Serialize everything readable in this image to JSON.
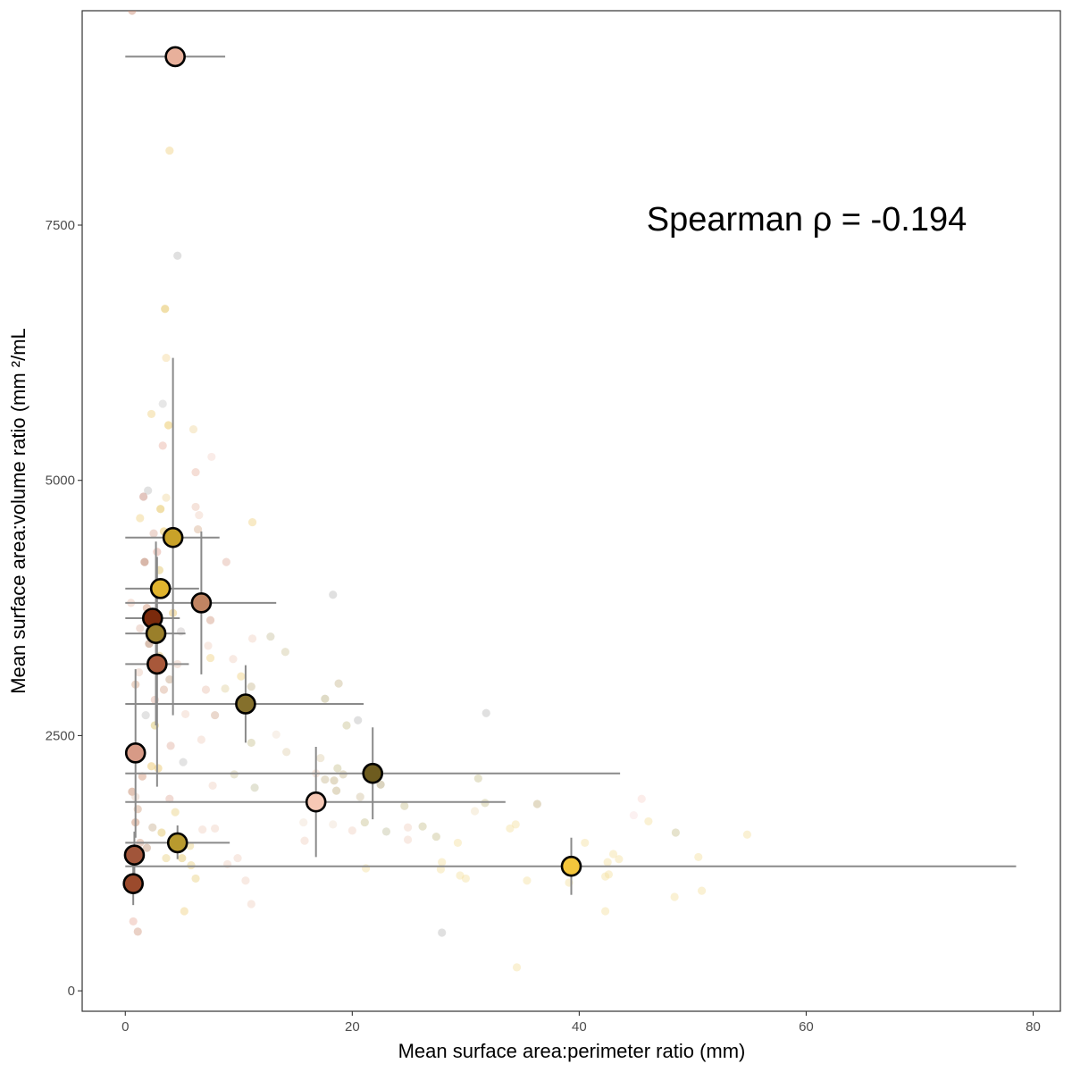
{
  "chart_data": {
    "type": "scatter",
    "xlabel": "Mean surface area:perimeter ratio (mm)",
    "ylabel": "Mean surface area:volume ratio (mm ²/mL",
    "annotation": "Spearman ρ = -0.194",
    "xlim": [
      -3.8,
      82.4
    ],
    "ylim": [
      -200,
      9600
    ],
    "x_ticks": [
      0,
      20,
      40,
      60,
      80
    ],
    "y_ticks": [
      0,
      2500,
      5000,
      7500
    ],
    "grid": false,
    "legend": "none",
    "group_means": [
      {
        "x": 4.4,
        "y": 9150,
        "x_lo": 0.0,
        "x_hi": 8.8,
        "y_lo": null,
        "y_hi": null,
        "color": "#E8B09B"
      },
      {
        "x": 4.2,
        "y": 4440,
        "x_lo": 0.0,
        "x_hi": 8.3,
        "y_lo": 2700,
        "y_hi": 6200,
        "color": "#C9A229"
      },
      {
        "x": 3.1,
        "y": 3940,
        "x_lo": 0.0,
        "x_hi": 6.5,
        "y_lo": null,
        "y_hi": null,
        "color": "#E0B42E"
      },
      {
        "x": 6.7,
        "y": 3800,
        "x_lo": 0.0,
        "x_hi": 13.3,
        "y_lo": 3100,
        "y_hi": 4500,
        "color": "#C08462"
      },
      {
        "x": 2.4,
        "y": 3650,
        "x_lo": 0.0,
        "x_hi": 4.8,
        "y_lo": null,
        "y_hi": null,
        "color": "#7A2A0C"
      },
      {
        "x": 2.7,
        "y": 3500,
        "x_lo": 0.0,
        "x_hi": 5.3,
        "y_lo": 2600,
        "y_hi": 4400,
        "color": "#9A7F2A"
      },
      {
        "x": 2.8,
        "y": 3200,
        "x_lo": 0.0,
        "x_hi": 5.6,
        "y_lo": 2000,
        "y_hi": 4250,
        "color": "#A8583A"
      },
      {
        "x": 10.6,
        "y": 2810,
        "x_lo": 0.0,
        "x_hi": 21.0,
        "y_lo": 2430,
        "y_hi": 3190,
        "color": "#85702C"
      },
      {
        "x": 0.9,
        "y": 2330,
        "x_lo": 0.0,
        "x_hi": 1.8,
        "y_lo": 1500,
        "y_hi": 3150,
        "color": "#D79A86"
      },
      {
        "x": 21.8,
        "y": 2130,
        "x_lo": 0.0,
        "x_hi": 43.6,
        "y_lo": 1680,
        "y_hi": 2580,
        "color": "#6E5C1F"
      },
      {
        "x": 16.8,
        "y": 1850,
        "x_lo": 0.0,
        "x_hi": 33.5,
        "y_lo": 1310,
        "y_hi": 2390,
        "color": "#F6C8B5"
      },
      {
        "x": 4.6,
        "y": 1450,
        "x_lo": 0.0,
        "x_hi": 9.2,
        "y_lo": 1290,
        "y_hi": 1620,
        "color": "#B89A2E"
      },
      {
        "x": 0.8,
        "y": 1330,
        "x_lo": null,
        "x_hi": null,
        "y_lo": 1100,
        "y_hi": 1560,
        "color": "#A1553A"
      },
      {
        "x": 39.3,
        "y": 1220,
        "x_lo": 0.0,
        "x_hi": 78.5,
        "y_lo": 940,
        "y_hi": 1500,
        "color": "#F4C63C"
      },
      {
        "x": 0.7,
        "y": 1050,
        "x_lo": 0.0,
        "x_hi": 1.4,
        "y_lo": 840,
        "y_hi": 1260,
        "color": "#9B4A2C"
      }
    ],
    "individual_points": [
      {
        "x": 0.6,
        "y": 9600,
        "color": "#c98a70"
      },
      {
        "x": 3.9,
        "y": 8230,
        "color": "#f0d080"
      },
      {
        "x": 4.6,
        "y": 7200,
        "color": "#bbbbbb"
      },
      {
        "x": 3.5,
        "y": 6680,
        "color": "#e0b840"
      },
      {
        "x": 3.6,
        "y": 6200,
        "color": "#f5d89a"
      },
      {
        "x": 2.3,
        "y": 5650,
        "color": "#f0d080"
      },
      {
        "x": 3.3,
        "y": 5750,
        "color": "#c9c9c9"
      },
      {
        "x": 3.8,
        "y": 5540,
        "color": "#e8c050"
      },
      {
        "x": 6.0,
        "y": 5500,
        "color": "#f0d8a0"
      },
      {
        "x": 3.3,
        "y": 5340,
        "color": "#e8b0a0"
      },
      {
        "x": 7.6,
        "y": 5230,
        "color": "#f5d5cc"
      },
      {
        "x": 6.2,
        "y": 5080,
        "color": "#e8b5a5"
      },
      {
        "x": 2.0,
        "y": 4900,
        "color": "#bdbdbd"
      },
      {
        "x": 1.6,
        "y": 4840,
        "color": "#c08070"
      },
      {
        "x": 3.6,
        "y": 4830,
        "color": "#f0d8a0"
      },
      {
        "x": 6.2,
        "y": 4740,
        "color": "#e8c0b0"
      },
      {
        "x": 3.1,
        "y": 4720,
        "color": "#e0b840"
      },
      {
        "x": 6.5,
        "y": 4660,
        "color": "#f0d0c0"
      },
      {
        "x": 1.3,
        "y": 4630,
        "color": "#f0d080"
      },
      {
        "x": 11.2,
        "y": 4590,
        "color": "#f0d080"
      },
      {
        "x": 2.5,
        "y": 4480,
        "color": "#d9a898"
      },
      {
        "x": 6.4,
        "y": 4520,
        "color": "#d8b090"
      },
      {
        "x": 3.8,
        "y": 4400,
        "color": "#c9a080"
      },
      {
        "x": 8.9,
        "y": 4200,
        "color": "#e0b0a0"
      },
      {
        "x": 1.7,
        "y": 4200,
        "color": "#a86040"
      },
      {
        "x": 3.0,
        "y": 4120,
        "color": "#e0c060"
      },
      {
        "x": 7.5,
        "y": 3630,
        "color": "#d09a80"
      },
      {
        "x": 12.8,
        "y": 3470,
        "color": "#c8c0a0"
      },
      {
        "x": 11.2,
        "y": 3450,
        "color": "#f0d0c0"
      },
      {
        "x": 14.1,
        "y": 3320,
        "color": "#d0c8a0"
      },
      {
        "x": 7.3,
        "y": 3380,
        "color": "#f0d0c0"
      },
      {
        "x": 18.3,
        "y": 3880,
        "color": "#bbbbbb"
      },
      {
        "x": 4.6,
        "y": 3200,
        "color": "#e8c8b8"
      },
      {
        "x": 9.5,
        "y": 3250,
        "color": "#f0d0c0"
      },
      {
        "x": 7.5,
        "y": 3260,
        "color": "#f0d080"
      },
      {
        "x": 10.2,
        "y": 3080,
        "color": "#f0d080"
      },
      {
        "x": 11.1,
        "y": 2980,
        "color": "#c8b890"
      },
      {
        "x": 7.1,
        "y": 2950,
        "color": "#e8c0b0"
      },
      {
        "x": 8.8,
        "y": 2960,
        "color": "#e0d0a0"
      },
      {
        "x": 17.6,
        "y": 2860,
        "color": "#b8b080"
      },
      {
        "x": 18.8,
        "y": 3010,
        "color": "#c8b890"
      },
      {
        "x": 5.3,
        "y": 2710,
        "color": "#f0d0c0"
      },
      {
        "x": 7.9,
        "y": 2700,
        "color": "#d0a890"
      },
      {
        "x": 20.5,
        "y": 2650,
        "color": "#bbbbbb"
      },
      {
        "x": 31.8,
        "y": 2720,
        "color": "#bbbbbb"
      },
      {
        "x": 19.5,
        "y": 2600,
        "color": "#c8c090"
      },
      {
        "x": 11.1,
        "y": 2430,
        "color": "#c8c090"
      },
      {
        "x": 6.7,
        "y": 2460,
        "color": "#f0d0c0"
      },
      {
        "x": 13.3,
        "y": 2510,
        "color": "#f0e0d0"
      },
      {
        "x": 14.2,
        "y": 2340,
        "color": "#e0d0b0"
      },
      {
        "x": 17.2,
        "y": 2280,
        "color": "#e0d0b0"
      },
      {
        "x": 16.8,
        "y": 2130,
        "color": "#f0d0c0"
      },
      {
        "x": 18.7,
        "y": 2180,
        "color": "#c8c090"
      },
      {
        "x": 19.2,
        "y": 2120,
        "color": "#c8b890"
      },
      {
        "x": 17.6,
        "y": 2070,
        "color": "#c8b890"
      },
      {
        "x": 18.4,
        "y": 2060,
        "color": "#c0b080"
      },
      {
        "x": 9.6,
        "y": 2120,
        "color": "#d0c8a0"
      },
      {
        "x": 7.7,
        "y": 2010,
        "color": "#f0d0c0"
      },
      {
        "x": 22.5,
        "y": 2020,
        "color": "#b0a070"
      },
      {
        "x": 31.1,
        "y": 2080,
        "color": "#c8c090"
      },
      {
        "x": 11.4,
        "y": 1990,
        "color": "#c0c0a0"
      },
      {
        "x": 18.6,
        "y": 1960,
        "color": "#c0b080"
      },
      {
        "x": 20.7,
        "y": 1900,
        "color": "#d0c0a0"
      },
      {
        "x": 24.6,
        "y": 1810,
        "color": "#c8c090"
      },
      {
        "x": 31.7,
        "y": 1840,
        "color": "#c8c090"
      },
      {
        "x": 36.3,
        "y": 1830,
        "color": "#c0b080"
      },
      {
        "x": 30.8,
        "y": 1760,
        "color": "#f0e0c0"
      },
      {
        "x": 21.1,
        "y": 1650,
        "color": "#c8c090"
      },
      {
        "x": 15.7,
        "y": 1650,
        "color": "#f0e0d0"
      },
      {
        "x": 18.3,
        "y": 1630,
        "color": "#f0e0d0"
      },
      {
        "x": 26.2,
        "y": 1610,
        "color": "#c8c090"
      },
      {
        "x": 24.9,
        "y": 1600,
        "color": "#f0d0c0"
      },
      {
        "x": 20.0,
        "y": 1570,
        "color": "#f0d0c0"
      },
      {
        "x": 23.0,
        "y": 1560,
        "color": "#c0c0a0"
      },
      {
        "x": 33.9,
        "y": 1590,
        "color": "#f5dfa0"
      },
      {
        "x": 34.4,
        "y": 1630,
        "color": "#f5dfa0"
      },
      {
        "x": 27.4,
        "y": 1510,
        "color": "#c8c090"
      },
      {
        "x": 24.9,
        "y": 1480,
        "color": "#f0d0c0"
      },
      {
        "x": 15.8,
        "y": 1470,
        "color": "#f0d0c0"
      },
      {
        "x": 29.3,
        "y": 1450,
        "color": "#f5dfa0"
      },
      {
        "x": 45.5,
        "y": 1880,
        "color": "#f8d8d0"
      },
      {
        "x": 46.1,
        "y": 1660,
        "color": "#f5e0a0"
      },
      {
        "x": 48.5,
        "y": 1550,
        "color": "#c8c090"
      },
      {
        "x": 54.8,
        "y": 1530,
        "color": "#f5e0a0"
      },
      {
        "x": 44.8,
        "y": 1720,
        "color": "#f8e0e0"
      },
      {
        "x": 40.5,
        "y": 1450,
        "color": "#f5e0a0"
      },
      {
        "x": 43.0,
        "y": 1340,
        "color": "#f5e0a0"
      },
      {
        "x": 43.5,
        "y": 1290,
        "color": "#f5e0a0"
      },
      {
        "x": 42.5,
        "y": 1260,
        "color": "#f5e0a0"
      },
      {
        "x": 50.5,
        "y": 1310,
        "color": "#f5e0a0"
      },
      {
        "x": 27.9,
        "y": 1260,
        "color": "#f5e0a0"
      },
      {
        "x": 27.8,
        "y": 1190,
        "color": "#f5e0a0"
      },
      {
        "x": 21.2,
        "y": 1200,
        "color": "#f5e0a0"
      },
      {
        "x": 29.5,
        "y": 1130,
        "color": "#f5e0a0"
      },
      {
        "x": 42.3,
        "y": 1120,
        "color": "#f5e0a0"
      },
      {
        "x": 42.6,
        "y": 1140,
        "color": "#f5e0a0"
      },
      {
        "x": 30.0,
        "y": 1100,
        "color": "#f5e0a0"
      },
      {
        "x": 35.4,
        "y": 1080,
        "color": "#f5e0a0"
      },
      {
        "x": 39.1,
        "y": 1060,
        "color": "#f5e0a0"
      },
      {
        "x": 50.8,
        "y": 980,
        "color": "#f5e0a0"
      },
      {
        "x": 48.4,
        "y": 920,
        "color": "#f5e0a0"
      },
      {
        "x": 10.6,
        "y": 1080,
        "color": "#f0d0c0"
      },
      {
        "x": 42.3,
        "y": 780,
        "color": "#f5e0a0"
      },
      {
        "x": 11.1,
        "y": 850,
        "color": "#f0d0c0"
      },
      {
        "x": 27.9,
        "y": 570,
        "color": "#bbbbbb"
      },
      {
        "x": 34.5,
        "y": 230,
        "color": "#f5e0a0"
      },
      {
        "x": 5.2,
        "y": 780,
        "color": "#f0d080"
      },
      {
        "x": 0.7,
        "y": 680,
        "color": "#e8b0a0"
      },
      {
        "x": 1.1,
        "y": 580,
        "color": "#d09a80"
      },
      {
        "x": 2.4,
        "y": 1600,
        "color": "#c8b090"
      },
      {
        "x": 3.2,
        "y": 1550,
        "color": "#e0c060"
      },
      {
        "x": 5.0,
        "y": 1300,
        "color": "#e0c060"
      },
      {
        "x": 5.8,
        "y": 1230,
        "color": "#e8d080"
      },
      {
        "x": 6.2,
        "y": 1100,
        "color": "#e8d080"
      },
      {
        "x": 9.0,
        "y": 1240,
        "color": "#f0d0c0"
      },
      {
        "x": 9.9,
        "y": 1300,
        "color": "#f0d0c0"
      },
      {
        "x": 6.8,
        "y": 1580,
        "color": "#f0d0c0"
      },
      {
        "x": 7.9,
        "y": 1590,
        "color": "#f0d0c0"
      },
      {
        "x": 3.9,
        "y": 1880,
        "color": "#e0b0a0"
      },
      {
        "x": 5.1,
        "y": 2240,
        "color": "#c0c0c0"
      },
      {
        "x": 4.0,
        "y": 2400,
        "color": "#e0b0a0"
      },
      {
        "x": 2.3,
        "y": 2200,
        "color": "#e8c060"
      },
      {
        "x": 2.9,
        "y": 2180,
        "color": "#e8c060"
      },
      {
        "x": 1.5,
        "y": 2100,
        "color": "#d09070"
      },
      {
        "x": 0.6,
        "y": 1950,
        "color": "#c08060"
      },
      {
        "x": 1.1,
        "y": 1780,
        "color": "#d0a080"
      },
      {
        "x": 0.9,
        "y": 1650,
        "color": "#c08060"
      },
      {
        "x": 1.3,
        "y": 1450,
        "color": "#d09a80"
      },
      {
        "x": 1.8,
        "y": 2700,
        "color": "#c0c0c0"
      },
      {
        "x": 2.6,
        "y": 2850,
        "color": "#e0b0a0"
      },
      {
        "x": 3.4,
        "y": 2950,
        "color": "#d8a890"
      },
      {
        "x": 0.9,
        "y": 3000,
        "color": "#d0a080"
      },
      {
        "x": 1.3,
        "y": 3550,
        "color": "#e0b8a8"
      },
      {
        "x": 0.5,
        "y": 3800,
        "color": "#e8c0b0"
      },
      {
        "x": 1.9,
        "y": 3750,
        "color": "#d09070"
      },
      {
        "x": 4.2,
        "y": 3700,
        "color": "#e8c060"
      },
      {
        "x": 4.9,
        "y": 3520,
        "color": "#c8c0c0"
      },
      {
        "x": 2.1,
        "y": 3400,
        "color": "#a87050"
      },
      {
        "x": 3.0,
        "y": 3280,
        "color": "#e0c070"
      },
      {
        "x": 1.2,
        "y": 3120,
        "color": "#e8c8b8"
      },
      {
        "x": 2.8,
        "y": 4300,
        "color": "#e0a090"
      },
      {
        "x": 3.4,
        "y": 4500,
        "color": "#e8c050"
      },
      {
        "x": 2.6,
        "y": 2600,
        "color": "#d8c060"
      },
      {
        "x": 3.9,
        "y": 3050,
        "color": "#c0a080"
      },
      {
        "x": 1.9,
        "y": 1400,
        "color": "#c09070"
      },
      {
        "x": 0.9,
        "y": 1900,
        "color": "#e0c8b8"
      },
      {
        "x": 3.6,
        "y": 1300,
        "color": "#e8d080"
      },
      {
        "x": 4.4,
        "y": 1750,
        "color": "#e8d080"
      },
      {
        "x": 5.7,
        "y": 1420,
        "color": "#e8d080"
      }
    ]
  }
}
